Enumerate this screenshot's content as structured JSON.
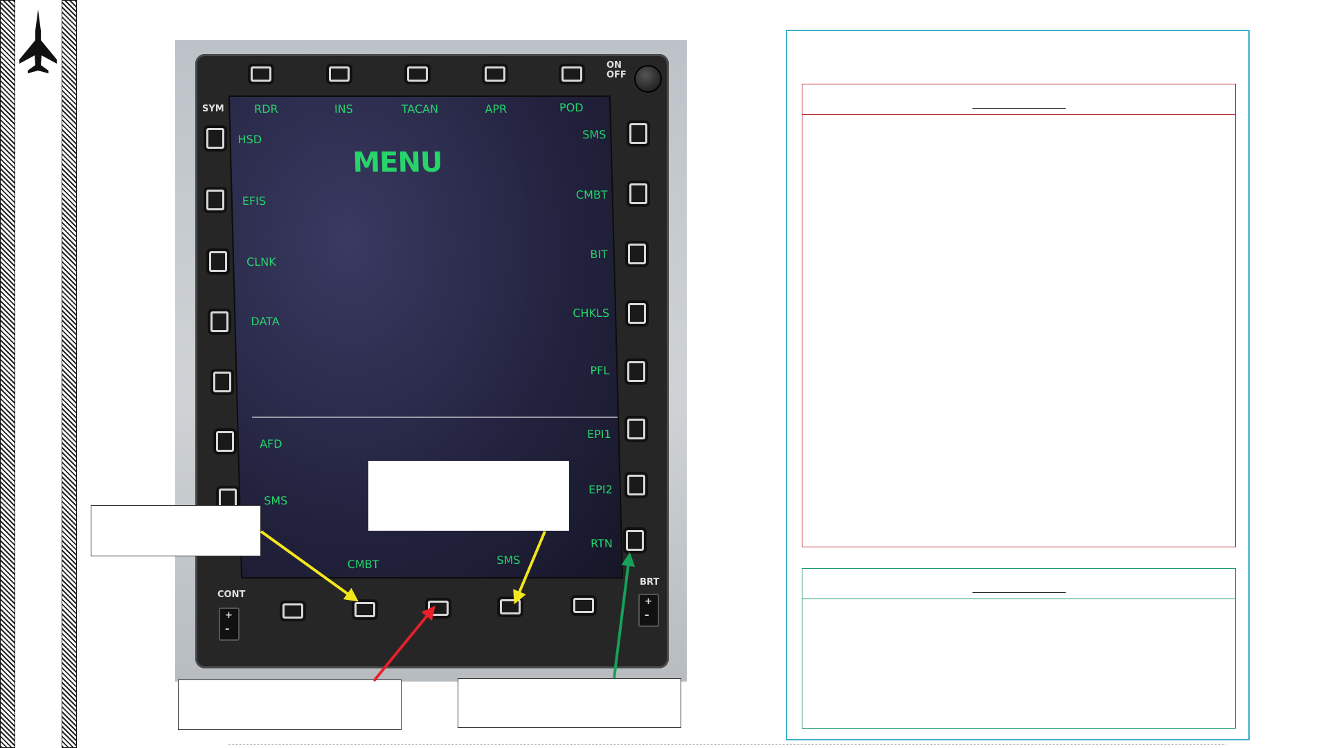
{
  "mfd": {
    "title": "MENU",
    "top_osb_labels": [
      "RDR",
      "INS",
      "TACAN",
      "APR",
      "POD"
    ],
    "left_osb_labels": [
      "HSD",
      "EFIS",
      "CLNK",
      "DATA",
      "AFD",
      "SMS"
    ],
    "right_osb_labels": [
      "SMS",
      "CMBT",
      "BIT",
      "CHKLS",
      "PFL",
      "EPI1",
      "EPI2",
      "RTN"
    ],
    "bottom_osb_labels": [
      "CMBT",
      "SMS"
    ],
    "bezel": {
      "power_label": "ON OFF",
      "symbology_label": "SYM",
      "contrast_label": "CONT",
      "brightness_label": "BRT",
      "plus": "+",
      "minus": "–"
    }
  },
  "arrow_colors": {
    "yellow": "#f2e61c",
    "red": "#e8202a",
    "green": "#16a25a"
  },
  "panel_colors": {
    "outer": "#3bb0c6",
    "upper_section": "#c0303a",
    "lower_section": "#1a9a66"
  }
}
